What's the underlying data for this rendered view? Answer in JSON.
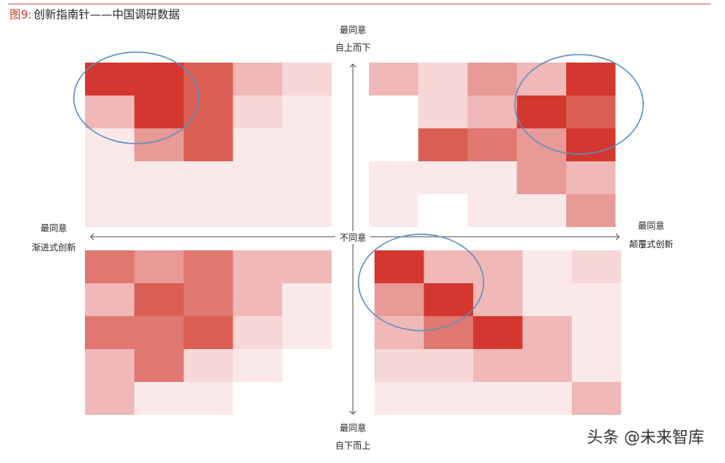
{
  "header": {
    "figure_label": "图9:",
    "title": "创新指南针——中国调研数据"
  },
  "axes": {
    "top": {
      "label": "最同意",
      "name": "自上而下"
    },
    "right": {
      "label": "最同意",
      "name": "颠覆式创新"
    },
    "left": {
      "label": "最同意",
      "name": "渐进式创新"
    },
    "bottom": {
      "label": "最同意",
      "name": "自下而上"
    },
    "center": "不同意"
  },
  "watermark": "头条 @未来智库"
}
